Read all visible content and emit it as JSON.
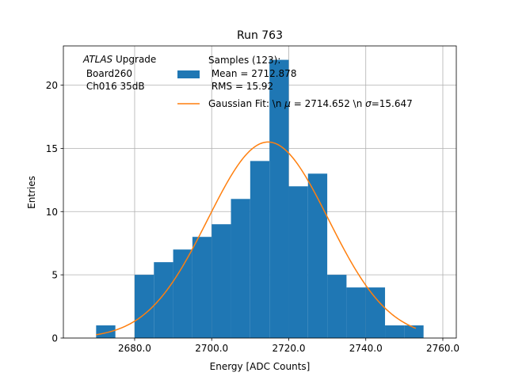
{
  "chart_data": {
    "type": "bar",
    "title": "Run 763",
    "xlabel": "Energy [ADC Counts]",
    "ylabel": "Entries",
    "xlim": [
      2661.5,
      2763.5
    ],
    "ylim": [
      0,
      23.1
    ],
    "grid": true,
    "x_ticks": [
      2680.0,
      2700.0,
      2720.0,
      2740.0,
      2760.0
    ],
    "x_tick_labels": [
      "2680.0",
      "2700.0",
      "2720.0",
      "2740.0",
      "2760.0"
    ],
    "y_ticks": [
      0,
      5,
      10,
      15,
      20
    ],
    "y_tick_labels": [
      "0",
      "5",
      "10",
      "15",
      "20"
    ],
    "histogram": {
      "name": "Samples (123)",
      "color": "#1f77b4",
      "bin_edges": [
        2670,
        2675,
        2680,
        2685,
        2690,
        2695,
        2700,
        2705,
        2710,
        2715,
        2720,
        2725,
        2730,
        2735,
        2740,
        2745,
        2750,
        2755
      ],
      "counts": [
        1,
        0,
        5,
        6,
        7,
        8,
        9,
        11,
        14,
        22,
        12,
        13,
        5,
        4,
        4,
        1,
        1
      ]
    },
    "fit": {
      "type": "gaussian",
      "color": "#ff7f0e",
      "amplitude": 15.5,
      "mu": 2714.652,
      "sigma": 15.647,
      "x_range": [
        2670,
        2753
      ]
    },
    "annotation": {
      "lines": [
        "ATLAS Upgrade",
        " Board260",
        " Ch016 35dB"
      ],
      "italic_word": "ATLAS",
      "rest_first_line": " Upgrade"
    },
    "legend": {
      "position": "top-right",
      "entries": [
        {
          "label_lines": [
            "Samples (123):",
            " Mean = 2712.878",
            " RMS = 15.92"
          ],
          "marker": "patch"
        },
        {
          "label_prefix": "Gaussian Fit: \\n ",
          "mu_symbol": "μ",
          "mu_text": " = 2714.652 \\n ",
          "sigma_symbol": "σ",
          "sigma_text": "=15.647",
          "marker": "line"
        }
      ]
    }
  }
}
